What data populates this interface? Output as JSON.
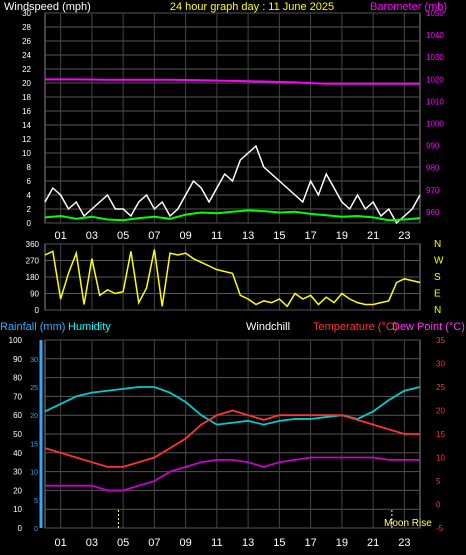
{
  "title": "24 hour graph day : 11 June 2025",
  "chart_data": [
    {
      "id": "wind-baro",
      "type": "line",
      "labels": {
        "left": "Windspeed (mph)",
        "right": "Barometer (mb)"
      },
      "x_ticks": [
        "01",
        "03",
        "05",
        "07",
        "09",
        "11",
        "13",
        "15",
        "17",
        "19",
        "21",
        "23"
      ],
      "y_left_ticks": [
        "0",
        "2",
        "4",
        "6",
        "8",
        "10",
        "12",
        "14",
        "16",
        "18",
        "20",
        "22",
        "24",
        "26",
        "28",
        "30"
      ],
      "y_right_ticks": [
        "960",
        "970",
        "980",
        "990",
        "1000",
        "1010",
        "1020",
        "1030",
        "1040",
        "1050"
      ],
      "ylim_left": [
        0,
        30
      ],
      "ylim_right": [
        955,
        1050
      ],
      "series": [
        {
          "key": "gust",
          "color": "#ffffff",
          "x": [
            0,
            0.5,
            1,
            1.5,
            2,
            2.5,
            3,
            3.5,
            4,
            4.5,
            5,
            5.5,
            6,
            6.5,
            7,
            7.5,
            8,
            8.5,
            9,
            9.5,
            10,
            10.5,
            11,
            11.5,
            12,
            12.5,
            13,
            13.5,
            14,
            14.5,
            15,
            15.5,
            16,
            16.5,
            17,
            17.5,
            18,
            18.5,
            19,
            19.5,
            20,
            20.5,
            21,
            21.5,
            22,
            22.5,
            23,
            23.5,
            24
          ],
          "y": [
            3,
            5,
            4,
            2,
            3,
            1,
            2,
            3,
            4,
            2,
            2,
            1,
            3,
            4,
            2,
            3,
            1,
            2,
            4,
            6,
            5,
            3,
            5,
            7,
            6,
            9,
            10,
            11,
            8,
            7,
            6,
            5,
            4,
            3,
            6,
            4,
            7,
            5,
            3,
            2,
            4,
            2,
            3,
            1,
            2,
            0,
            1,
            2,
            4
          ]
        },
        {
          "key": "speed",
          "color": "#00ff00",
          "x": [
            0,
            1,
            2,
            3,
            4,
            5,
            6,
            7,
            8,
            9,
            10,
            11,
            12,
            13,
            14,
            15,
            16,
            17,
            18,
            19,
            20,
            21,
            22,
            23,
            24
          ],
          "y": [
            0.8,
            1.0,
            0.6,
            0.9,
            0.5,
            0.4,
            0.7,
            0.9,
            0.6,
            1.2,
            1.5,
            1.4,
            1.6,
            1.8,
            1.7,
            1.5,
            1.6,
            1.3,
            1.1,
            0.9,
            1.0,
            0.8,
            0.4,
            0.5,
            0.7
          ]
        },
        {
          "key": "barometer",
          "color": "#ff00ff",
          "x": [
            0,
            2,
            4,
            6,
            8,
            10,
            12,
            14,
            16,
            18,
            20,
            22,
            24
          ],
          "y": [
            1020.0,
            1020.0,
            1019.8,
            1019.8,
            1019.8,
            1019.6,
            1019.3,
            1019.0,
            1018.6,
            1018.0,
            1018.0,
            1018.0,
            1018.0
          ]
        }
      ]
    },
    {
      "id": "wind-direction",
      "type": "line",
      "labels": {
        "right": [
          "N",
          "W",
          "S",
          "E",
          "N"
        ]
      },
      "y_left_ticks": [
        "360",
        "270",
        "180",
        "90",
        "0"
      ],
      "ylim": [
        0,
        360
      ],
      "series": [
        {
          "key": "direction",
          "color": "#ffff00",
          "x": [
            0,
            0.5,
            1,
            1.5,
            2,
            2.5,
            3,
            3.5,
            4,
            4.5,
            5,
            5.5,
            6,
            6.5,
            7,
            7.5,
            8,
            8.5,
            9,
            9.5,
            10,
            10.5,
            11,
            11.5,
            12,
            12.5,
            13,
            13.5,
            14,
            14.5,
            15,
            15.5,
            16,
            16.5,
            17,
            17.5,
            18,
            18.5,
            19,
            19.5,
            20,
            20.5,
            21,
            21.5,
            22,
            22.5,
            23,
            23.5,
            24
          ],
          "y": [
            300,
            320,
            60,
            200,
            310,
            30,
            280,
            80,
            110,
            90,
            100,
            320,
            40,
            120,
            330,
            20,
            310,
            300,
            310,
            280,
            260,
            240,
            220,
            210,
            200,
            80,
            60,
            30,
            50,
            40,
            60,
            20,
            90,
            60,
            80,
            30,
            70,
            40,
            90,
            60,
            40,
            30,
            30,
            40,
            50,
            150,
            170,
            160,
            150
          ]
        }
      ]
    },
    {
      "id": "temp-hum-rain",
      "type": "line",
      "labels": {
        "rainfall": "Rainfall (mm)",
        "humidity": "Humidity",
        "windchill": "Windchill",
        "temperature": "Temperature (°C)",
        "dewpoint": "Dew Point (°C)",
        "moon": "Moon Rise"
      },
      "x_ticks": [
        "01",
        "03",
        "05",
        "07",
        "09",
        "11",
        "13",
        "15",
        "17",
        "19",
        "21",
        "23"
      ],
      "y_hum_ticks": [
        "0",
        "10",
        "20",
        "30",
        "40",
        "50",
        "60",
        "70",
        "80",
        "90",
        "100"
      ],
      "y_rain_ticks": [
        "0",
        "5",
        "10",
        "15",
        "20",
        "25",
        "30"
      ],
      "y_temp_ticks": [
        "-5",
        "0",
        "5",
        "10",
        "15",
        "20",
        "25",
        "30",
        "35"
      ],
      "ylim_hum": [
        0,
        100
      ],
      "ylim_temp": [
        -5,
        35
      ],
      "series": [
        {
          "key": "humidity",
          "color": "#00cccc",
          "x": [
            0,
            1,
            2,
            3,
            4,
            5,
            6,
            7,
            8,
            9,
            10,
            11,
            12,
            13,
            14,
            15,
            16,
            17,
            18,
            19,
            20,
            21,
            22,
            23,
            24
          ],
          "y": [
            62,
            66,
            70,
            72,
            73,
            74,
            75,
            75,
            72,
            67,
            60,
            55,
            56,
            57,
            55,
            57,
            58,
            58,
            59,
            60,
            58,
            62,
            68,
            73,
            75
          ]
        },
        {
          "key": "temperature",
          "color": "#ff3333",
          "x": [
            0,
            1,
            2,
            3,
            4,
            5,
            6,
            7,
            8,
            9,
            10,
            11,
            12,
            13,
            14,
            15,
            16,
            17,
            18,
            19,
            20,
            21,
            22,
            23,
            24
          ],
          "y": [
            12,
            11,
            10,
            9,
            8,
            8,
            9,
            10,
            12,
            14,
            17,
            19,
            20,
            19,
            18,
            19,
            19,
            19,
            19,
            19,
            18,
            17,
            16,
            15,
            15
          ]
        },
        {
          "key": "dewpoint",
          "color": "#cc00cc",
          "x": [
            0,
            1,
            2,
            3,
            4,
            5,
            6,
            7,
            8,
            9,
            10,
            11,
            12,
            13,
            14,
            15,
            16,
            17,
            18,
            19,
            20,
            21,
            22,
            23,
            24
          ],
          "y": [
            4,
            4,
            4,
            4,
            3,
            3,
            4,
            5,
            7,
            8,
            9,
            9.5,
            9.5,
            9,
            8,
            9,
            9.5,
            10,
            10,
            10,
            10,
            10,
            9.5,
            9.5,
            9.5
          ]
        }
      ],
      "moon_markers_hours": [
        4.7,
        22.2
      ]
    }
  ]
}
